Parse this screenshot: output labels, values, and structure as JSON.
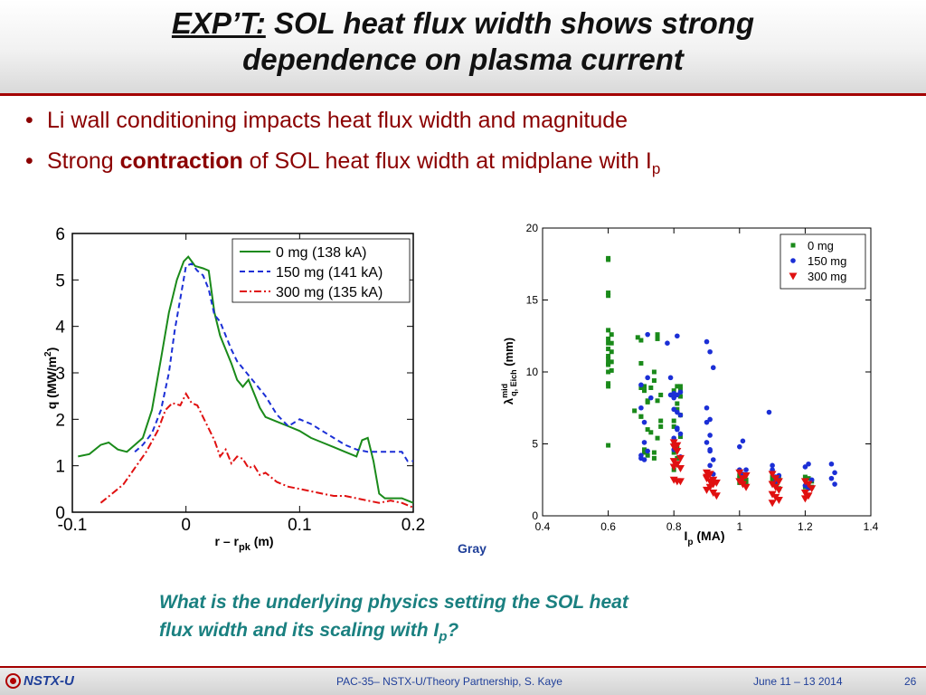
{
  "title": {
    "prefix": "EXP’T:",
    "line1_rest": " SOL heat flux width shows strong",
    "line2": "dependence on plasma current"
  },
  "bullets": [
    {
      "text": "Li wall conditioning impacts heat flux width and magnitude"
    },
    {
      "pre": "Strong ",
      "bold": "contraction",
      "post": " of SOL heat flux width at midplane with I",
      "sub": "p"
    }
  ],
  "colors": {
    "accent": "#a40000",
    "bullet_text": "#8b0000",
    "question": "#1a8080",
    "footer_text": "#1f3f99",
    "green": "#1a8a1a",
    "blue": "#1b2fd6",
    "red": "#e01010"
  },
  "chart_data": [
    {
      "type": "line",
      "xlabel_main": "r – r",
      "xlabel_sub": "pk",
      "xlabel_unit": " (m)",
      "ylabel": "q (MW/m",
      "ylabel_sup": "2",
      "ylabel_end": ")",
      "xlim": [
        -0.1,
        0.2
      ],
      "ylim": [
        0,
        6
      ],
      "xticks": [
        -0.1,
        0,
        0.1,
        0.2
      ],
      "xtick_labels": [
        "-0.1",
        "0",
        "0.1",
        "0.2"
      ],
      "yticks": [
        0,
        1,
        2,
        3,
        4,
        5,
        6
      ],
      "ytick_labels": [
        "0",
        "1",
        "2",
        "3",
        "4",
        "5",
        "6"
      ],
      "legend_position": "top-right",
      "series": [
        {
          "name": "0 mg (138 kA)",
          "color": "#1a8a1a",
          "dash": "",
          "x": [
            -0.095,
            -0.085,
            -0.075,
            -0.068,
            -0.06,
            -0.052,
            -0.045,
            -0.038,
            -0.03,
            -0.022,
            -0.015,
            -0.008,
            -0.002,
            0.002,
            0.008,
            0.015,
            0.02,
            0.025,
            0.03,
            0.035,
            0.04,
            0.045,
            0.05,
            0.055,
            0.06,
            0.065,
            0.07,
            0.08,
            0.09,
            0.1,
            0.11,
            0.12,
            0.13,
            0.14,
            0.15,
            0.155,
            0.16,
            0.165,
            0.17,
            0.175,
            0.18,
            0.19,
            0.2
          ],
          "y": [
            1.2,
            1.25,
            1.45,
            1.5,
            1.35,
            1.3,
            1.45,
            1.6,
            2.2,
            3.3,
            4.3,
            5.0,
            5.4,
            5.5,
            5.3,
            5.25,
            5.2,
            4.3,
            3.8,
            3.5,
            3.2,
            2.85,
            2.7,
            2.85,
            2.55,
            2.25,
            2.05,
            1.95,
            1.85,
            1.75,
            1.6,
            1.5,
            1.4,
            1.3,
            1.2,
            1.55,
            1.6,
            1.1,
            0.4,
            0.3,
            0.3,
            0.3,
            0.2
          ]
        },
        {
          "name": "150 mg (141 kA)",
          "color": "#1b2fd6",
          "dash": "6,4",
          "x": [
            -0.045,
            -0.038,
            -0.03,
            -0.022,
            -0.015,
            -0.01,
            -0.005,
            0.0,
            0.005,
            0.01,
            0.015,
            0.02,
            0.025,
            0.03,
            0.035,
            0.04,
            0.045,
            0.05,
            0.055,
            0.06,
            0.07,
            0.08,
            0.09,
            0.1,
            0.11,
            0.12,
            0.13,
            0.14,
            0.15,
            0.16,
            0.17,
            0.18,
            0.19,
            0.195,
            0.2
          ],
          "y": [
            1.3,
            1.45,
            1.7,
            2.2,
            3.0,
            3.9,
            4.6,
            5.3,
            5.35,
            5.2,
            5.1,
            4.8,
            4.25,
            4.1,
            3.8,
            3.5,
            3.25,
            3.1,
            2.95,
            2.8,
            2.5,
            2.1,
            1.85,
            2.0,
            1.9,
            1.75,
            1.6,
            1.45,
            1.35,
            1.3,
            1.3,
            1.3,
            1.3,
            1.1,
            1.1
          ]
        },
        {
          "name": "300 mg (135 kA)",
          "color": "#e01010",
          "dash": "8,3,2,3",
          "x": [
            -0.075,
            -0.065,
            -0.055,
            -0.045,
            -0.035,
            -0.025,
            -0.018,
            -0.012,
            -0.005,
            0.0,
            0.005,
            0.01,
            0.015,
            0.02,
            0.025,
            0.03,
            0.035,
            0.04,
            0.045,
            0.05,
            0.055,
            0.06,
            0.065,
            0.07,
            0.08,
            0.09,
            0.1,
            0.11,
            0.12,
            0.13,
            0.14,
            0.15,
            0.16,
            0.17,
            0.18,
            0.19,
            0.2
          ],
          "y": [
            0.2,
            0.4,
            0.6,
            0.95,
            1.3,
            1.75,
            2.2,
            2.35,
            2.3,
            2.55,
            2.35,
            2.3,
            2.05,
            1.8,
            1.55,
            1.2,
            1.35,
            1.05,
            1.2,
            1.15,
            0.95,
            1.0,
            0.8,
            0.85,
            0.65,
            0.55,
            0.5,
            0.45,
            0.4,
            0.35,
            0.35,
            0.3,
            0.25,
            0.2,
            0.25,
            0.2,
            0.1
          ]
        }
      ]
    },
    {
      "type": "scatter",
      "xlabel": "I",
      "xlabel_sub": "p",
      "xlabel_unit": " (MA)",
      "ylabel": "λ",
      "ylabel_sup": "mid",
      "ylabel_sub": "q, Eich",
      "ylabel_unit": " (mm)",
      "xlim": [
        0.4,
        1.4
      ],
      "ylim": [
        0,
        20
      ],
      "xticks": [
        0.4,
        0.6,
        0.8,
        1.0,
        1.2,
        1.4
      ],
      "xtick_labels": [
        "0.4",
        "0.6",
        "0.8",
        "1",
        "1.2",
        "1.4"
      ],
      "yticks": [
        0,
        5,
        10,
        15,
        20
      ],
      "ytick_labels": [
        "0",
        "5",
        "10",
        "15",
        "20"
      ],
      "legend_position": "top-right",
      "series": [
        {
          "name": "0 mg",
          "color": "#1a8a1a",
          "marker": "square",
          "x": [
            0.6,
            0.6,
            0.6,
            0.6,
            0.6,
            0.61,
            0.6,
            0.61,
            0.6,
            0.6,
            0.6,
            0.61,
            0.61,
            0.6,
            0.6,
            0.61,
            0.6,
            0.6,
            0.6,
            0.6,
            0.6,
            0.68,
            0.7,
            0.69,
            0.7,
            0.7,
            0.71,
            0.72,
            0.72,
            0.7,
            0.7,
            0.72,
            0.73,
            0.71,
            0.71,
            0.72,
            0.73,
            0.71,
            0.74,
            0.75,
            0.75,
            0.74,
            0.76,
            0.75,
            0.76,
            0.76,
            0.75,
            0.74,
            0.74,
            0.8,
            0.81,
            0.82,
            0.81,
            0.8,
            0.82,
            0.82,
            0.8,
            0.81,
            0.8,
            0.82,
            0.81,
            0.8,
            0.82,
            0.8,
            0.81,
            1.0,
            1.0,
            1.02,
            1.01,
            1.0,
            1.02,
            1.1,
            1.12,
            1.1,
            1.11,
            1.12,
            1.2,
            1.21,
            1.22,
            1.21,
            1.2,
            1.22
          ],
          "y": [
            17.9,
            17.8,
            15.5,
            15.3,
            12.9,
            12.6,
            12.3,
            12.0,
            11.6,
            11.1,
            10.9,
            10.7,
            10.1,
            9.2,
            9.0,
            11.4,
            10.6,
            12.0,
            10.5,
            4.9,
            10.0,
            7.3,
            12.2,
            12.4,
            10.6,
            8.9,
            9.0,
            7.9,
            8.0,
            6.9,
            6.9,
            6.0,
            5.8,
            4.6,
            4.4,
            4.2,
            8.9,
            8.7,
            9.4,
            12.3,
            12.6,
            10.0,
            8.4,
            8.0,
            6.6,
            6.2,
            5.4,
            4.4,
            4.0,
            6.2,
            7.8,
            9.0,
            7.4,
            6.6,
            7.0,
            5.5,
            5.0,
            4.7,
            4.4,
            8.8,
            9.0,
            8.7,
            8.3,
            3.2,
            4.0,
            2.8,
            2.6,
            2.5,
            2.4,
            2.3,
            2.2,
            2.7,
            2.6,
            2.4,
            2.2,
            1.9,
            2.7,
            2.6,
            2.4,
            2.2,
            2.0,
            2.0
          ]
        },
        {
          "name": "150 mg",
          "color": "#1b2fd6",
          "marker": "circle",
          "x": [
            0.7,
            0.7,
            0.71,
            0.72,
            0.71,
            0.7,
            0.72,
            0.73,
            0.72,
            0.7,
            0.71,
            0.78,
            0.79,
            0.8,
            0.79,
            0.8,
            0.81,
            0.8,
            0.82,
            0.81,
            0.82,
            0.8,
            0.82,
            0.8,
            0.81,
            0.81,
            0.82,
            0.8,
            0.81,
            0.9,
            0.9,
            0.91,
            0.91,
            0.9,
            0.91,
            0.92,
            0.91,
            0.92,
            0.91,
            0.9,
            0.92,
            0.91,
            1.0,
            1.0,
            1.01,
            1.02,
            1.01,
            1.01,
            1.09,
            1.1,
            1.1,
            1.12,
            1.11,
            1.1,
            1.11,
            1.2,
            1.21,
            1.22,
            1.2,
            1.21,
            1.28,
            1.29,
            1.28,
            1.29
          ],
          "y": [
            4.0,
            4.2,
            3.9,
            4.5,
            5.1,
            9.1,
            9.6,
            8.2,
            12.6,
            7.5,
            6.5,
            12.0,
            9.6,
            8.2,
            8.4,
            8.5,
            8.4,
            7.4,
            7.0,
            6.1,
            5.7,
            4.6,
            4.1,
            5.4,
            6.0,
            7.2,
            8.6,
            8.5,
            12.5,
            7.5,
            6.5,
            5.6,
            4.5,
            5.1,
            4.6,
            3.9,
            3.5,
            2.9,
            11.4,
            12.1,
            10.3,
            6.7,
            3.2,
            4.8,
            5.2,
            3.2,
            2.9,
            2.7,
            7.2,
            3.5,
            3.2,
            2.8,
            2.4,
            3.1,
            2.7,
            3.4,
            3.6,
            2.5,
            2.1,
            1.9,
            3.6,
            3.0,
            2.6,
            2.2
          ]
        },
        {
          "name": "300 mg",
          "color": "#e01010",
          "marker": "triangle",
          "x": [
            0.8,
            0.81,
            0.82,
            0.8,
            0.81,
            0.82,
            0.8,
            0.81,
            0.82,
            0.8,
            0.81,
            0.8,
            0.9,
            0.9,
            0.91,
            0.92,
            0.91,
            0.9,
            0.92,
            0.93,
            0.91,
            0.9,
            0.92,
            0.93,
            1.0,
            1.01,
            1.02,
            1.0,
            1.01,
            1.02,
            1.1,
            1.11,
            1.12,
            1.1,
            1.11,
            1.12,
            1.1,
            1.11,
            1.12,
            1.1,
            1.2,
            1.21,
            1.22,
            1.2,
            1.21,
            1.2
          ],
          "y": [
            4.8,
            4.5,
            4.0,
            3.8,
            3.6,
            3.3,
            2.5,
            2.4,
            2.4,
            5.1,
            4.9,
            3.4,
            3.0,
            2.6,
            2.4,
            2.2,
            2.0,
            1.8,
            1.6,
            1.4,
            2.9,
            2.7,
            2.5,
            2.3,
            2.4,
            2.6,
            2.8,
            3.0,
            2.2,
            2.0,
            2.9,
            2.6,
            2.4,
            2.2,
            2.0,
            1.8,
            1.5,
            1.3,
            1.1,
            0.9,
            2.4,
            2.2,
            1.9,
            1.6,
            1.4,
            1.2
          ]
        }
      ]
    }
  ],
  "gray_label": "Gray",
  "question": {
    "line1": "What is the underlying physics setting the SOL heat",
    "line2_pre": "flux width and its scaling with I",
    "line2_sub": "p",
    "line2_post": "?"
  },
  "footer": {
    "logo_text": "NSTX-U",
    "center": "PAC-35– NSTX-U/Theory Partnership, S. Kaye",
    "date": "June 11 – 13 2014",
    "page": "26"
  }
}
